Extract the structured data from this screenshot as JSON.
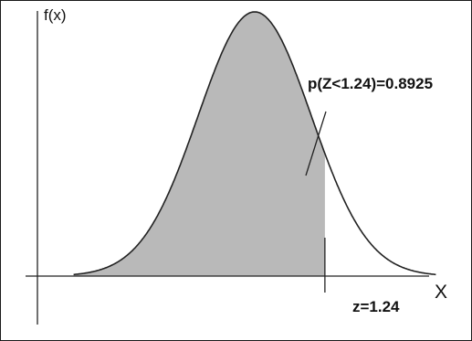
{
  "chart_data": {
    "type": "area",
    "distribution": "standard normal",
    "y_axis_label": "f(x)",
    "x_axis_label": "X",
    "cutoff_z": 1.24,
    "cutoff_label": "z=1.24",
    "shaded_region": "left of z",
    "probability": 0.8925,
    "annotation": "p(Z<1.24)=0.8925",
    "xlim": [
      -3.2,
      3.2
    ],
    "colors": {
      "shade": "#b9b9b9",
      "curve": "#222222",
      "axes": "#222222",
      "background": "#ffffff"
    }
  }
}
